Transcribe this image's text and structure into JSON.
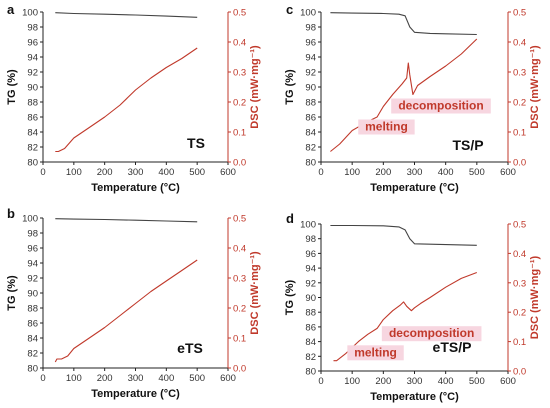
{
  "colors": {
    "tg": "#444444",
    "dsc": "#c0392b",
    "dsc_axis": "#c0392b",
    "annot_text": "#c0392b",
    "annot_bg": "#f7d6e0"
  },
  "chart_data": [
    {
      "type": "line",
      "panel_label": "a",
      "sample_label": "TS",
      "xlabel": "Temperature (°C)",
      "ylabel": "TG (%)",
      "y2label": "DSC (mW·mg⁻¹)",
      "xlim": [
        0,
        600
      ],
      "ylim": [
        80,
        100
      ],
      "y2lim": [
        0,
        0.5
      ],
      "xticks": [
        "0",
        "100",
        "200",
        "300",
        "400",
        "500",
        "600"
      ],
      "yticks": [
        "80",
        "82",
        "84",
        "86",
        "88",
        "90",
        "92",
        "94",
        "96",
        "98",
        "100"
      ],
      "y2ticks": [
        "0.0",
        "0.1",
        "0.2",
        "0.3",
        "0.4",
        "0.5"
      ],
      "annotations": [],
      "series": [
        {
          "axis": "left",
          "color": "#444444",
          "x": [
            40,
            100,
            200,
            300,
            400,
            500
          ],
          "y": [
            99.9,
            99.8,
            99.7,
            99.6,
            99.45,
            99.3
          ]
        },
        {
          "axis": "right",
          "color": "#c0392b",
          "x": [
            40,
            50,
            70,
            100,
            150,
            200,
            250,
            300,
            350,
            400,
            450,
            500
          ],
          "y": [
            0.035,
            0.035,
            0.045,
            0.08,
            0.115,
            0.15,
            0.19,
            0.24,
            0.28,
            0.315,
            0.345,
            0.38
          ]
        }
      ]
    },
    {
      "type": "line",
      "panel_label": "b",
      "sample_label": "eTS",
      "xlabel": "Temperature (°C)",
      "ylabel": "TG (%)",
      "y2label": "DSC (mW·mg⁻¹)",
      "xlim": [
        0,
        600
      ],
      "ylim": [
        80,
        100
      ],
      "y2lim": [
        0,
        0.5
      ],
      "xticks": [
        "0",
        "100",
        "200",
        "300",
        "400",
        "500",
        "600"
      ],
      "yticks": [
        "80",
        "82",
        "84",
        "86",
        "88",
        "90",
        "92",
        "94",
        "96",
        "98",
        "100"
      ],
      "y2ticks": [
        "0.0",
        "0.1",
        "0.2",
        "0.3",
        "0.4",
        "0.5"
      ],
      "annotations": [],
      "series": [
        {
          "axis": "left",
          "color": "#444444",
          "x": [
            40,
            100,
            200,
            300,
            400,
            500
          ],
          "y": [
            99.9,
            99.85,
            99.8,
            99.7,
            99.6,
            99.5
          ]
        },
        {
          "axis": "right",
          "color": "#c0392b",
          "x": [
            40,
            45,
            60,
            80,
            100,
            150,
            200,
            250,
            300,
            350,
            400,
            450,
            500
          ],
          "y": [
            0.02,
            0.03,
            0.03,
            0.04,
            0.065,
            0.1,
            0.135,
            0.175,
            0.215,
            0.255,
            0.29,
            0.325,
            0.36
          ]
        }
      ]
    },
    {
      "type": "line",
      "panel_label": "c",
      "sample_label": "TS/P",
      "xlabel": "Temperature (°C)",
      "ylabel": "TG (%)",
      "y2label": "DSC (mW·mg⁻¹)",
      "xlim": [
        0,
        600
      ],
      "ylim": [
        80,
        100
      ],
      "y2lim": [
        0,
        0.5
      ],
      "xticks": [
        "0",
        "100",
        "200",
        "300",
        "400",
        "500",
        "600"
      ],
      "yticks": [
        "80",
        "82",
        "84",
        "86",
        "88",
        "90",
        "92",
        "94",
        "96",
        "98",
        "100"
      ],
      "y2ticks": [
        "0.0",
        "0.1",
        "0.2",
        "0.3",
        "0.4",
        "0.5"
      ],
      "annotations": [
        {
          "text": "decomposition",
          "x": 385,
          "y": 0.175
        },
        {
          "text": "melting",
          "x": 210,
          "y": 0.105
        }
      ],
      "series": [
        {
          "axis": "left",
          "color": "#444444",
          "x": [
            30,
            100,
            200,
            250,
            270,
            285,
            300,
            350,
            400,
            500
          ],
          "y": [
            99.9,
            99.85,
            99.8,
            99.7,
            99.5,
            98.0,
            97.3,
            97.15,
            97.1,
            97.0
          ]
        },
        {
          "axis": "right",
          "color": "#c0392b",
          "x": [
            30,
            60,
            100,
            150,
            180,
            200,
            230,
            260,
            275,
            280,
            285,
            295,
            310,
            350,
            400,
            450,
            500
          ],
          "y": [
            0.035,
            0.06,
            0.105,
            0.135,
            0.15,
            0.185,
            0.225,
            0.26,
            0.28,
            0.33,
            0.29,
            0.225,
            0.255,
            0.285,
            0.32,
            0.36,
            0.41
          ]
        }
      ]
    },
    {
      "type": "line",
      "panel_label": "d",
      "sample_label": "eTS/P",
      "xlabel": "Temperature (°C)",
      "ylabel": "TG (%)",
      "y2label": "DSC (mW·mg⁻¹)",
      "xlim": [
        0,
        600
      ],
      "ylim": [
        80,
        100
      ],
      "y2lim": [
        0,
        0.5
      ],
      "xticks": [
        "0",
        "100",
        "200",
        "300",
        "400",
        "500",
        "600"
      ],
      "yticks": [
        "80",
        "82",
        "84",
        "86",
        "88",
        "90",
        "92",
        "94",
        "96",
        "98",
        "100"
      ],
      "y2ticks": [
        "0.0",
        "0.1",
        "0.2",
        "0.3",
        "0.4",
        "0.5"
      ],
      "annotations": [
        {
          "text": "decomposition",
          "x": 355,
          "y": 0.115
        },
        {
          "text": "melting",
          "x": 175,
          "y": 0.05
        }
      ],
      "series": [
        {
          "axis": "left",
          "color": "#444444",
          "x": [
            30,
            100,
            200,
            250,
            270,
            285,
            300,
            350,
            400,
            500
          ],
          "y": [
            99.8,
            99.8,
            99.75,
            99.6,
            99.2,
            98.0,
            97.3,
            97.25,
            97.2,
            97.1
          ]
        },
        {
          "axis": "right",
          "color": "#c0392b",
          "x": [
            40,
            50,
            80,
            120,
            150,
            180,
            200,
            230,
            255,
            265,
            275,
            290,
            300,
            320,
            350,
            400,
            450,
            500
          ],
          "y": [
            0.035,
            0.035,
            0.06,
            0.1,
            0.125,
            0.145,
            0.175,
            0.205,
            0.225,
            0.235,
            0.22,
            0.205,
            0.215,
            0.23,
            0.25,
            0.285,
            0.315,
            0.335
          ]
        }
      ]
    }
  ]
}
